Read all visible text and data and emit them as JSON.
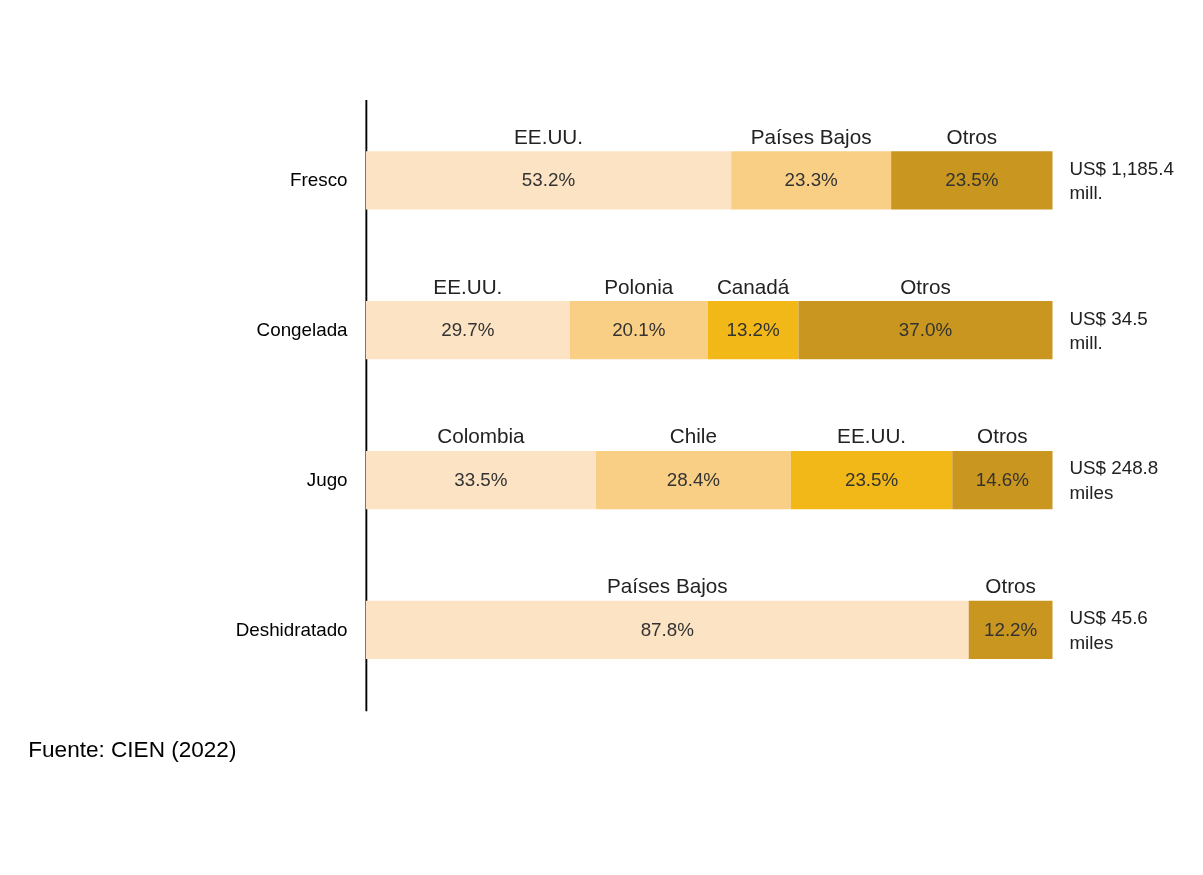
{
  "chart_data": {
    "type": "bar",
    "orientation": "horizontal",
    "stacked": true,
    "categories": [
      "Fresco",
      "Congelada",
      "Jugo",
      "Deshidratado"
    ],
    "series": [
      {
        "color": "#fce3c4",
        "values": [
          53.2,
          29.7,
          33.5,
          87.8
        ],
        "value_labels": [
          "53.2%",
          "29.7%",
          "33.5%",
          "87.8%"
        ]
      },
      {
        "color": "#f9cf85",
        "values": [
          23.3,
          20.1,
          28.4,
          null
        ],
        "value_labels": [
          "23.3%",
          "20.1%",
          "28.4%",
          null
        ]
      },
      {
        "color": "#f2b818",
        "values": [
          null,
          13.2,
          23.5,
          null
        ],
        "value_labels": [
          null,
          "13.2%",
          "23.5%",
          null
        ]
      },
      {
        "color": "#c9961f",
        "values": [
          23.5,
          37.0,
          14.6,
          12.2
        ],
        "value_labels": [
          "23.5%",
          "37.0%",
          "14.6%",
          "12.2%"
        ]
      }
    ],
    "totals": [
      "US$ 1,185.4 mill.",
      "US$ 34.5 mill.",
      "US$ 248.8 miles",
      "US$ 45.6 miles"
    ],
    "annotations": [
      "EE.UU.",
      "Países Bajos",
      "Otros",
      "EE.UU.",
      "Polonia",
      "Canadá",
      "Otros",
      "Colombia",
      "Chile",
      "EE.UU.",
      "Otros",
      "Países Bajos",
      "Otros",
      "Fuente: CIEN (2022)"
    ],
    "grid": false,
    "tick_labels": "y"
  }
}
